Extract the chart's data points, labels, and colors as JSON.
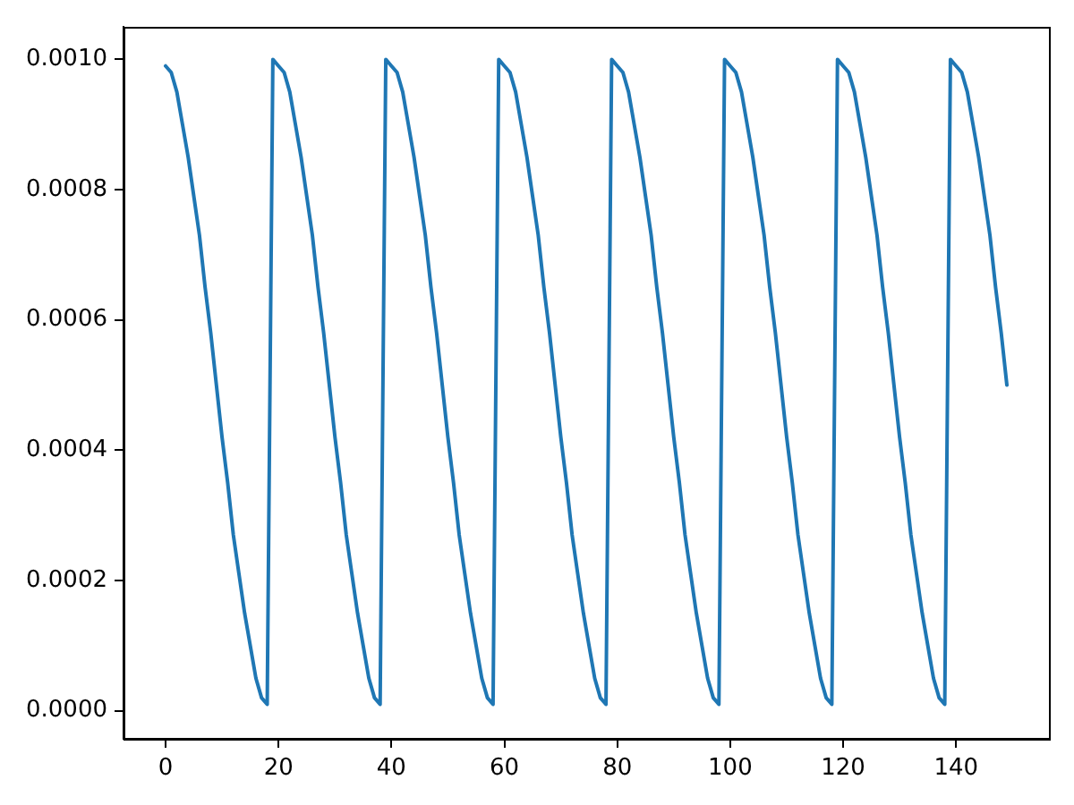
{
  "chart_data": {
    "type": "line",
    "color": "#1f77b4",
    "x": [
      0,
      1,
      2,
      3,
      4,
      5,
      6,
      7,
      8,
      9,
      10,
      11,
      12,
      13,
      14,
      15,
      16,
      17,
      18,
      19,
      20,
      21,
      22,
      23,
      24,
      25,
      26,
      27,
      28,
      29,
      30,
      31,
      32,
      33,
      34,
      35,
      36,
      37,
      38,
      39,
      40,
      41,
      42,
      43,
      44,
      45,
      46,
      47,
      48,
      49,
      50,
      51,
      52,
      53,
      54,
      55,
      56,
      57,
      58,
      59,
      60,
      61,
      62,
      63,
      64,
      65,
      66,
      67,
      68,
      69,
      70,
      71,
      72,
      73,
      74,
      75,
      76,
      77,
      78,
      79,
      80,
      81,
      82,
      83,
      84,
      85,
      86,
      87,
      88,
      89,
      90,
      91,
      92,
      93,
      94,
      95,
      96,
      97,
      98,
      99,
      100,
      101,
      102,
      103,
      104,
      105,
      106,
      107,
      108,
      109,
      110,
      111,
      112,
      113,
      114,
      115,
      116,
      117,
      118,
      119,
      120,
      121,
      122,
      123,
      124,
      125,
      126,
      127,
      128,
      129,
      130,
      131,
      132,
      133,
      134,
      135,
      136,
      137,
      138,
      139,
      140,
      141,
      142,
      143,
      144,
      145,
      146,
      147,
      148,
      149
    ],
    "values": [
      0.00099,
      0.00098,
      0.00095,
      0.0009,
      0.00085,
      0.00079,
      0.00073,
      0.00065,
      0.00058,
      0.0005,
      0.00042,
      0.00035,
      0.00027,
      0.00021,
      0.00015,
      0.0001,
      5e-05,
      2e-05,
      1e-05,
      0.001,
      0.00099,
      0.00098,
      0.00095,
      0.0009,
      0.00085,
      0.00079,
      0.00073,
      0.00065,
      0.00058,
      0.0005,
      0.00042,
      0.00035,
      0.00027,
      0.00021,
      0.00015,
      0.0001,
      5e-05,
      2e-05,
      1e-05,
      0.001,
      0.00099,
      0.00098,
      0.00095,
      0.0009,
      0.00085,
      0.00079,
      0.00073,
      0.00065,
      0.00058,
      0.0005,
      0.00042,
      0.00035,
      0.00027,
      0.00021,
      0.00015,
      0.0001,
      5e-05,
      2e-05,
      1e-05,
      0.001,
      0.00099,
      0.00098,
      0.00095,
      0.0009,
      0.00085,
      0.00079,
      0.00073,
      0.00065,
      0.00058,
      0.0005,
      0.00042,
      0.00035,
      0.00027,
      0.00021,
      0.00015,
      0.0001,
      5e-05,
      2e-05,
      1e-05,
      0.001,
      0.00099,
      0.00098,
      0.00095,
      0.0009,
      0.00085,
      0.00079,
      0.00073,
      0.00065,
      0.00058,
      0.0005,
      0.00042,
      0.00035,
      0.00027,
      0.00021,
      0.00015,
      0.0001,
      5e-05,
      2e-05,
      1e-05,
      0.001,
      0.00099,
      0.00098,
      0.00095,
      0.0009,
      0.00085,
      0.00079,
      0.00073,
      0.00065,
      0.00058,
      0.0005,
      0.00042,
      0.00035,
      0.00027,
      0.00021,
      0.00015,
      0.0001,
      5e-05,
      2e-05,
      1e-05,
      0.001,
      0.00099,
      0.00098,
      0.00095,
      0.0009,
      0.00085,
      0.00079,
      0.00073,
      0.00065,
      0.00058,
      0.0005,
      0.00042,
      0.00035,
      0.00027,
      0.00021,
      0.00015,
      0.0001,
      5e-05,
      2e-05,
      1e-05,
      0.001,
      0.00099,
      0.00098,
      0.00095,
      0.0009,
      0.00085,
      0.00079,
      0.00073,
      0.00065,
      0.00058,
      0.0005
    ],
    "xlim": [
      -7.45,
      156.45
    ],
    "xticks": [
      0,
      20,
      40,
      60,
      80,
      100,
      120,
      140
    ],
    "ylim": [
      -4.3e-05,
      0.00105
    ],
    "yticks": [
      {
        "value": 0,
        "label": "0.0000"
      },
      {
        "value": 0.0002,
        "label": "0.0002"
      },
      {
        "value": 0.0004,
        "label": "0.0004"
      },
      {
        "value": 0.0006,
        "label": "0.0006"
      },
      {
        "value": 0.0008,
        "label": "0.0008"
      },
      {
        "value": 0.001,
        "label": "0.0010"
      }
    ],
    "grid": false,
    "legend": false
  }
}
